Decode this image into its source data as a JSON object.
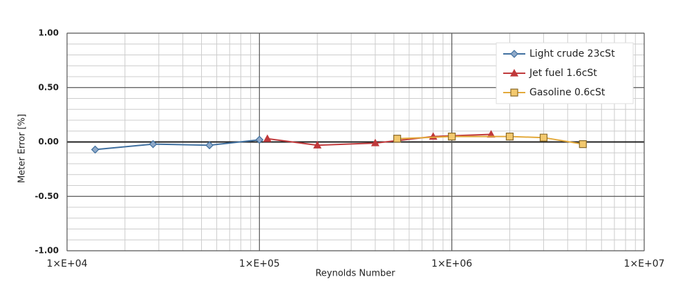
{
  "chart_data": {
    "type": "line",
    "x_label": "Reynolds Number",
    "y_label": "Meter Error [%]",
    "xscale": "log",
    "xlim": [
      10000,
      10000000
    ],
    "xticks": [
      {
        "value": 10000,
        "label": "1×E+04"
      },
      {
        "value": 100000,
        "label": "1×E+05"
      },
      {
        "value": 1000000,
        "label": "1×E+06"
      },
      {
        "value": 10000000,
        "label": "1×E+07"
      }
    ],
    "ylim": [
      -1,
      1
    ],
    "yticks": [
      {
        "value": -1,
        "label": "-1.00"
      },
      {
        "value": -0.5,
        "label": "-0.50"
      },
      {
        "value": 0,
        "label": "0.00"
      },
      {
        "value": 0.5,
        "label": "0.50"
      },
      {
        "value": 1,
        "label": "1.00"
      }
    ],
    "grid": true,
    "legend": "upper right",
    "series": [
      {
        "name": "Light crude 23cSt",
        "color": "#3f6f9f",
        "marker": "diamond",
        "x": [
          14000,
          28000,
          55000,
          100000
        ],
        "values": [
          -0.07,
          -0.02,
          -0.03,
          0.02
        ]
      },
      {
        "name": "Jet fuel 1.6cSt",
        "color": "#c0393b",
        "marker": "triangle",
        "x": [
          110000,
          200000,
          400000,
          800000,
          1600000
        ],
        "values": [
          0.03,
          -0.03,
          -0.01,
          0.05,
          0.07
        ]
      },
      {
        "name": "Gasoline 0.6cSt",
        "color": "#e3a93a",
        "marker": "square",
        "x": [
          520000,
          1000000,
          2000000,
          3000000,
          4800000
        ],
        "values": [
          0.03,
          0.05,
          0.05,
          0.04,
          -0.02
        ]
      }
    ]
  }
}
